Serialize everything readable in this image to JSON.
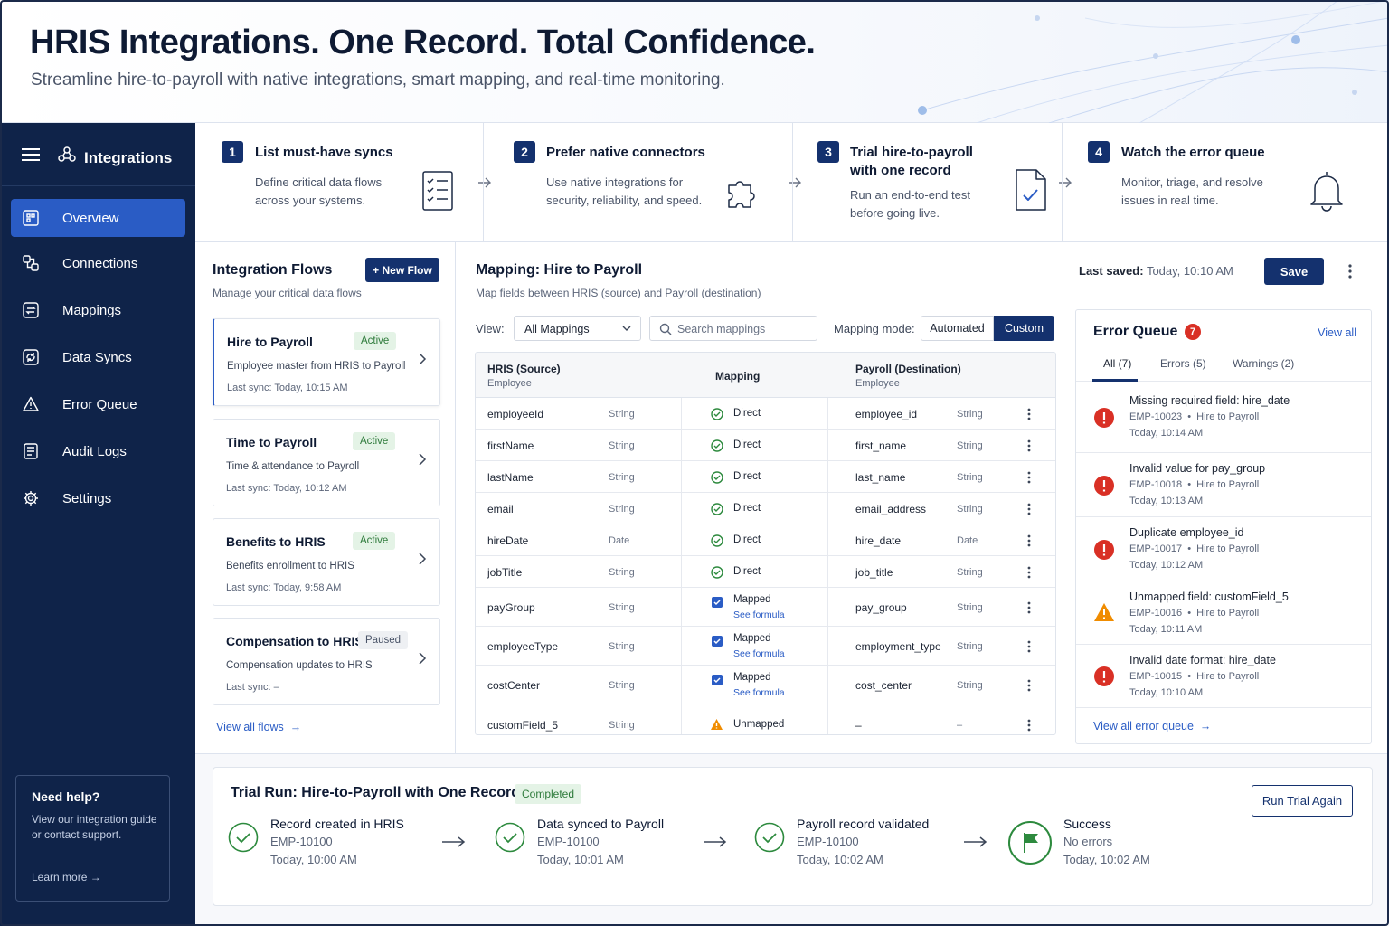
{
  "hero": {
    "title": "HRIS Integrations. One Record. Total Confidence.",
    "subtitle": "Streamline hire-to-payroll with native integrations, smart mapping, and real-time monitoring."
  },
  "sidebar": {
    "title": "Integrations",
    "items": [
      {
        "label": "Overview",
        "icon": "overview-icon",
        "active": true
      },
      {
        "label": "Connections",
        "icon": "connections-icon"
      },
      {
        "label": "Mappings",
        "icon": "mappings-icon"
      },
      {
        "label": "Data Syncs",
        "icon": "data-syncs-icon"
      },
      {
        "label": "Error Queue",
        "icon": "warning-icon"
      },
      {
        "label": "Audit Logs",
        "icon": "audit-logs-icon"
      },
      {
        "label": "Settings",
        "icon": "gear-icon"
      }
    ],
    "help": {
      "title": "Need help?",
      "desc": "View our integration guide or contact support.",
      "link": "Learn more"
    }
  },
  "steps": [
    {
      "num": "1",
      "title": "List must-have syncs",
      "desc": "Define critical data flows across your systems.",
      "icon": "checklist-icon"
    },
    {
      "num": "2",
      "title": "Prefer native connectors",
      "desc": "Use native integrations for security, reliability, and speed.",
      "icon": "puzzle-icon"
    },
    {
      "num": "3",
      "title": "Trial hire-to-payroll with one record",
      "desc": "Run an end-to-end test before going live.",
      "icon": "document-check-icon"
    },
    {
      "num": "4",
      "title": "Watch the error queue",
      "desc": "Monitor, triage, and resolve issues in real time.",
      "icon": "bell-icon"
    }
  ],
  "flows": {
    "title": "Integration Flows",
    "subtitle": "Manage your critical data flows",
    "new_button": "+ New Flow",
    "view_all": "View all flows",
    "items": [
      {
        "name": "Hire to Payroll",
        "status": "Active",
        "desc": "Employee master from HRIS to Payroll",
        "sync": "Last sync: Today, 10:15 AM"
      },
      {
        "name": "Time to Payroll",
        "status": "Active",
        "desc": "Time & attendance to Payroll",
        "sync": "Last sync: Today, 10:12 AM"
      },
      {
        "name": "Benefits to HRIS",
        "status": "Active",
        "desc": "Benefits enrollment to HRIS",
        "sync": "Last sync: Today, 9:58 AM"
      },
      {
        "name": "Compensation to HRIS",
        "status": "Paused",
        "desc": "Compensation updates to HRIS",
        "sync": "Last sync: –"
      }
    ]
  },
  "mapping": {
    "title": "Mapping: Hire to Payroll",
    "subtitle": "Map fields between HRIS (source) and Payroll (destination)",
    "last_saved_label": "Last saved:",
    "last_saved_value": "Today, 10:10 AM",
    "save_label": "Save",
    "view_label": "View:",
    "view_value": "All Mappings",
    "search_placeholder": "Search mappings",
    "mode_label": "Mapping mode:",
    "mode_automated": "Automated",
    "mode_custom": "Custom",
    "headers": {
      "source": "HRIS (Source)",
      "source_sub": "Employee",
      "mapping": "Mapping",
      "dest": "Payroll (Destination)",
      "dest_sub": "Employee"
    },
    "rows": [
      {
        "src": "employeeId",
        "src_type": "String",
        "status": "Direct",
        "kind": "direct",
        "dst": "employee_id",
        "dst_type": "String"
      },
      {
        "src": "firstName",
        "src_type": "String",
        "status": "Direct",
        "kind": "direct",
        "dst": "first_name",
        "dst_type": "String"
      },
      {
        "src": "lastName",
        "src_type": "String",
        "status": "Direct",
        "kind": "direct",
        "dst": "last_name",
        "dst_type": "String"
      },
      {
        "src": "email",
        "src_type": "String",
        "status": "Direct",
        "kind": "direct",
        "dst": "email_address",
        "dst_type": "String"
      },
      {
        "src": "hireDate",
        "src_type": "Date",
        "status": "Direct",
        "kind": "direct",
        "dst": "hire_date",
        "dst_type": "Date"
      },
      {
        "src": "jobTitle",
        "src_type": "String",
        "status": "Direct",
        "kind": "direct",
        "dst": "job_title",
        "dst_type": "String"
      },
      {
        "src": "payGroup",
        "src_type": "String",
        "status": "Mapped",
        "kind": "mapped",
        "formula": "See formula",
        "dst": "pay_group",
        "dst_type": "String"
      },
      {
        "src": "employeeType",
        "src_type": "String",
        "status": "Mapped",
        "kind": "mapped",
        "formula": "See formula",
        "dst": "employment_type",
        "dst_type": "String"
      },
      {
        "src": "costCenter",
        "src_type": "String",
        "status": "Mapped",
        "kind": "mapped",
        "formula": "See formula",
        "dst": "cost_center",
        "dst_type": "String"
      },
      {
        "src": "customField_5",
        "src_type": "String",
        "status": "Unmapped",
        "kind": "unmapped",
        "dst": "–",
        "dst_type": "–"
      }
    ]
  },
  "error_queue": {
    "title": "Error Queue",
    "count": "7",
    "view_all": "View all",
    "tabs": [
      "All (7)",
      "Errors (5)",
      "Warnings (2)"
    ],
    "items": [
      {
        "title": "Missing required field: hire_date",
        "id": "EMP-10023",
        "flow": "Hire to Payroll",
        "time": "Today, 10:14 AM",
        "kind": "error"
      },
      {
        "title": "Invalid value for pay_group",
        "id": "EMP-10018",
        "flow": "Hire to Payroll",
        "time": "Today, 10:13 AM",
        "kind": "error"
      },
      {
        "title": "Duplicate employee_id",
        "id": "EMP-10017",
        "flow": "Hire to Payroll",
        "time": "Today, 10:12 AM",
        "kind": "error"
      },
      {
        "title": "Unmapped field: customField_5",
        "id": "EMP-10016",
        "flow": "Hire to Payroll",
        "time": "Today, 10:11 AM",
        "kind": "warning"
      },
      {
        "title": "Invalid date format: hire_date",
        "id": "EMP-10015",
        "flow": "Hire to Payroll",
        "time": "Today, 10:10 AM",
        "kind": "error"
      }
    ],
    "footer_link": "View all error queue"
  },
  "trial": {
    "title": "Trial Run: Hire-to-Payroll with One Record",
    "status": "Completed",
    "button": "Run Trial Again",
    "steps": [
      {
        "title": "Record created in HRIS",
        "sub": "EMP-10100",
        "time": "Today, 10:00 AM",
        "icon": "check-circle-icon"
      },
      {
        "title": "Data synced to Payroll",
        "sub": "EMP-10100",
        "time": "Today, 10:01 AM",
        "icon": "check-circle-icon"
      },
      {
        "title": "Payroll record validated",
        "sub": "EMP-10100",
        "time": "Today, 10:02 AM",
        "icon": "check-circle-icon"
      },
      {
        "title": "Success",
        "sub": "No errors",
        "time": "Today, 10:02 AM",
        "icon": "flag-icon"
      }
    ]
  },
  "colors": {
    "sidebar": "#0f2349",
    "accent": "#2a5cc5",
    "primary": "#14316e",
    "success": "#2d8a3e",
    "error": "#d93025",
    "warning": "#f08c00"
  }
}
